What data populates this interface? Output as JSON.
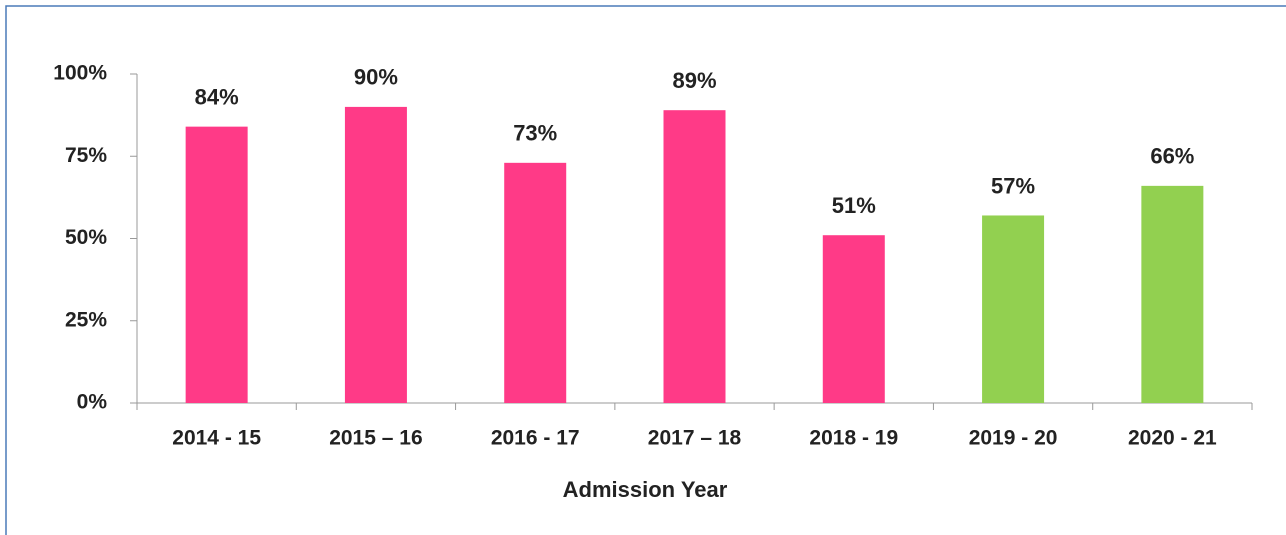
{
  "chart_data": {
    "type": "bar",
    "x_label": "Admission Year",
    "categories": [
      "2014 - 15",
      "2015 – 16",
      "2016 - 17",
      "2017 – 18",
      "2018 - 19",
      "2019 - 20",
      "2020 - 21"
    ],
    "values": [
      84,
      90,
      73,
      89,
      51,
      57,
      66
    ],
    "value_labels": [
      "84%",
      "90%",
      "73%",
      "89%",
      "51%",
      "57%",
      "66%"
    ],
    "colors": [
      "#ff3a87",
      "#ff3a87",
      "#ff3a87",
      "#ff3a87",
      "#ff3a87",
      "#92d050",
      "#92d050"
    ],
    "ylim": [
      0,
      100
    ],
    "yticks": [
      {
        "value": 0,
        "label": "0%"
      },
      {
        "value": 25,
        "label": "25%"
      },
      {
        "value": 50,
        "label": "50%"
      },
      {
        "value": 75,
        "label": "75%"
      },
      {
        "value": 100,
        "label": "100%"
      }
    ],
    "grid": false
  }
}
